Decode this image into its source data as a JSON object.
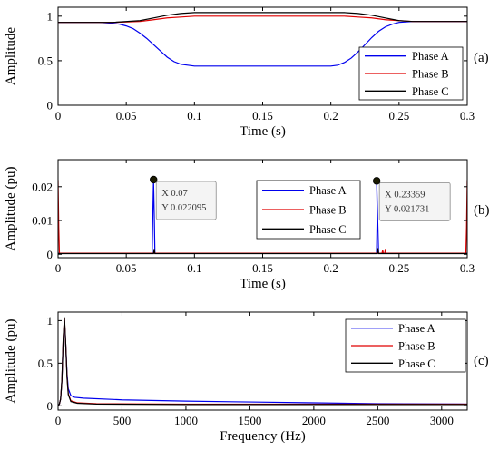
{
  "chart_data": [
    {
      "id": "a",
      "type": "line",
      "panel_label": "(a)",
      "xlabel": "Time (s)",
      "ylabel": "Amplitude",
      "xlim": [
        0,
        0.3
      ],
      "ylim": [
        0,
        1.1
      ],
      "xticks": [
        0,
        0.05,
        0.1,
        0.15,
        0.2,
        0.25,
        0.3
      ],
      "xtick_labels": [
        "0",
        "0.05",
        "0.1",
        "0.15",
        "0.2",
        "0.25",
        "0.3"
      ],
      "yticks": [
        0,
        0.5,
        1
      ],
      "ytick_labels": [
        "0",
        "0.5",
        "1"
      ],
      "legend_position": "right",
      "series": [
        {
          "name": "Phase A",
          "color": "#0000ee",
          "x": [
            0,
            0.03,
            0.04,
            0.045,
            0.05,
            0.055,
            0.06,
            0.065,
            0.07,
            0.075,
            0.08,
            0.085,
            0.09,
            0.1,
            0.12,
            0.15,
            0.18,
            0.2,
            0.205,
            0.21,
            0.215,
            0.22,
            0.225,
            0.23,
            0.235,
            0.24,
            0.245,
            0.25,
            0.26,
            0.3
          ],
          "y": [
            0.93,
            0.93,
            0.92,
            0.91,
            0.89,
            0.86,
            0.81,
            0.75,
            0.68,
            0.61,
            0.54,
            0.49,
            0.46,
            0.44,
            0.44,
            0.44,
            0.44,
            0.44,
            0.45,
            0.48,
            0.53,
            0.6,
            0.68,
            0.76,
            0.83,
            0.88,
            0.91,
            0.93,
            0.94,
            0.94
          ]
        },
        {
          "name": "Phase B",
          "color": "#e00000",
          "x": [
            0,
            0.04,
            0.06,
            0.07,
            0.08,
            0.09,
            0.1,
            0.2,
            0.21,
            0.22,
            0.23,
            0.24,
            0.25,
            0.26,
            0.3
          ],
          "y": [
            0.93,
            0.93,
            0.94,
            0.96,
            0.98,
            0.99,
            1.0,
            1.0,
            1.0,
            0.99,
            0.98,
            0.96,
            0.95,
            0.94,
            0.94
          ]
        },
        {
          "name": "Phase C",
          "color": "#000000",
          "x": [
            0,
            0.04,
            0.06,
            0.07,
            0.08,
            0.09,
            0.1,
            0.2,
            0.21,
            0.22,
            0.23,
            0.24,
            0.25,
            0.26,
            0.3
          ],
          "y": [
            0.93,
            0.93,
            0.95,
            0.98,
            1.01,
            1.03,
            1.04,
            1.04,
            1.04,
            1.03,
            1.01,
            0.98,
            0.95,
            0.94,
            0.94
          ]
        }
      ]
    },
    {
      "id": "b",
      "type": "line",
      "panel_label": "(b)",
      "xlabel": "Time (s)",
      "ylabel": "Amplitude (pu)",
      "xlim": [
        0,
        0.3
      ],
      "ylim": [
        -0.001,
        0.028
      ],
      "xticks": [
        0,
        0.05,
        0.1,
        0.15,
        0.2,
        0.25,
        0.3
      ],
      "xtick_labels": [
        "0",
        "0.05",
        "0.1",
        "0.15",
        "0.2",
        "0.25",
        "0.3"
      ],
      "yticks": [
        0,
        0.01,
        0.02
      ],
      "ytick_labels": [
        "0",
        "0.01",
        "0.02"
      ],
      "legend_position": "right",
      "series": [
        {
          "name": "Phase A",
          "color": "#0000ee",
          "x": [
            0,
            0.069,
            0.0695,
            0.07,
            0.0705,
            0.071,
            0.0715,
            0.2335,
            0.234,
            0.23359,
            0.2345,
            0.235,
            0.3
          ],
          "y": [
            0.0003,
            0.0003,
            0.012,
            0.022095,
            0.012,
            0.0004,
            0.0003,
            0.0003,
            0.012,
            0.021731,
            0.008,
            0.0003,
            0.0003
          ]
        },
        {
          "name": "Phase B",
          "color": "#e00000",
          "x": [
            0,
            0.0005,
            0.001,
            0.2375,
            0.238,
            0.2385,
            0.2395,
            0.24,
            0.2405,
            0.299,
            0.2995,
            0.3
          ],
          "y": [
            0.022,
            0.008,
            0.0003,
            0.0003,
            0.0012,
            0.0003,
            0.0003,
            0.0016,
            0.0003,
            0.0003,
            0.008,
            0.022
          ]
        },
        {
          "name": "Phase C",
          "color": "#000000",
          "x": [
            0,
            0.07,
            0.0705,
            0.071,
            0.234,
            0.2345,
            0.235,
            0.3
          ],
          "y": [
            0.0002,
            0.0002,
            0.0016,
            0.0002,
            0.0002,
            0.0018,
            0.0002,
            0.0002
          ]
        }
      ],
      "datatips": [
        {
          "x": 0.07,
          "y": 0.022095,
          "x_text": "X 0.07",
          "y_text": "Y 0.022095"
        },
        {
          "x": 0.23359,
          "y": 0.021731,
          "x_text": "X 0.23359",
          "y_text": "Y 0.021731"
        }
      ]
    },
    {
      "id": "c",
      "type": "line",
      "panel_label": "(c)",
      "xlabel": "Frequency (Hz)",
      "ylabel": "Amplitude (pu)",
      "xlim": [
        0,
        3200
      ],
      "ylim": [
        -0.05,
        1.1
      ],
      "xticks": [
        0,
        500,
        1000,
        1500,
        2000,
        2500,
        3000
      ],
      "xtick_labels": [
        "0",
        "500",
        "1000",
        "1500",
        "2000",
        "2500",
        "3000"
      ],
      "yticks": [
        0,
        0.5,
        1
      ],
      "ytick_labels": [
        "0",
        "0.5",
        "1"
      ],
      "legend_position": "top-right",
      "series": [
        {
          "name": "Phase A",
          "color": "#0000ee",
          "x": [
            0,
            10,
            20,
            30,
            40,
            50,
            60,
            70,
            80,
            100,
            130,
            200,
            500,
            1000,
            1500,
            2000,
            2500,
            3200
          ],
          "y": [
            0,
            0.02,
            0.08,
            0.3,
            0.75,
            1.0,
            0.72,
            0.38,
            0.2,
            0.12,
            0.1,
            0.09,
            0.07,
            0.055,
            0.045,
            0.035,
            0.025,
            0.02
          ]
        },
        {
          "name": "Phase B",
          "color": "#e00000",
          "x": [
            0,
            10,
            20,
            30,
            40,
            50,
            60,
            70,
            80,
            100,
            150,
            300,
            1000,
            2000,
            3200
          ],
          "y": [
            0,
            0.02,
            0.08,
            0.3,
            0.78,
            1.03,
            0.72,
            0.34,
            0.14,
            0.06,
            0.035,
            0.025,
            0.02,
            0.02,
            0.02
          ]
        },
        {
          "name": "Phase C",
          "color": "#000000",
          "x": [
            0,
            10,
            20,
            30,
            40,
            50,
            60,
            70,
            80,
            100,
            150,
            300,
            1000,
            2000,
            3200
          ],
          "y": [
            0,
            0.02,
            0.08,
            0.3,
            0.78,
            1.04,
            0.72,
            0.33,
            0.13,
            0.05,
            0.03,
            0.02,
            0.015,
            0.015,
            0.015
          ]
        }
      ]
    }
  ]
}
